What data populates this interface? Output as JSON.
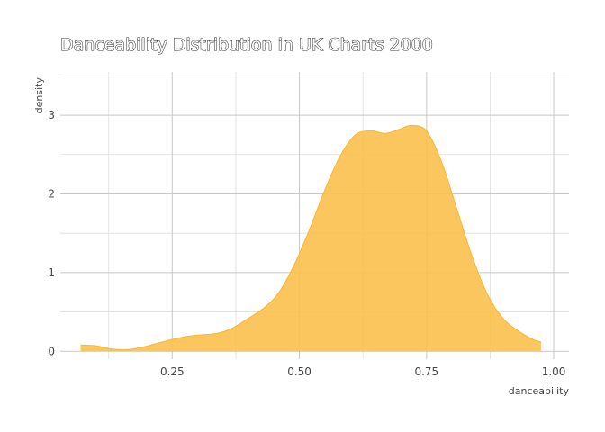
{
  "chart_data": {
    "type": "area",
    "title": "Danceability Distribution in UK Charts 2000",
    "xlabel": "danceability",
    "ylabel": "density",
    "xlim": [
      0.03,
      1.03
    ],
    "ylim": [
      -0.1,
      3.55
    ],
    "x_ticks": [
      0.25,
      0.5,
      0.75,
      1.0
    ],
    "x_tick_labels": [
      "0.25",
      "0.50",
      "0.75",
      "1.00"
    ],
    "y_ticks": [
      0,
      1,
      2,
      3
    ],
    "y_tick_labels": [
      "0",
      "1",
      "2",
      "3"
    ],
    "grid": true,
    "fill_color": "#F9C04B",
    "line_color": "#F5B733",
    "series": [
      {
        "x": [
          0.07,
          0.1,
          0.13,
          0.16,
          0.19,
          0.22,
          0.25,
          0.28,
          0.31,
          0.34,
          0.37,
          0.4,
          0.43,
          0.46,
          0.49,
          0.52,
          0.55,
          0.58,
          0.61,
          0.64,
          0.67,
          0.7,
          0.72,
          0.75,
          0.78,
          0.81,
          0.84,
          0.87,
          0.9,
          0.93,
          0.96,
          0.975
        ],
        "y": [
          0.08,
          0.07,
          0.03,
          0.02,
          0.05,
          0.1,
          0.15,
          0.19,
          0.21,
          0.23,
          0.3,
          0.42,
          0.55,
          0.75,
          1.1,
          1.55,
          2.05,
          2.48,
          2.75,
          2.8,
          2.77,
          2.83,
          2.87,
          2.8,
          2.4,
          1.8,
          1.2,
          0.72,
          0.42,
          0.26,
          0.15,
          0.12
        ]
      }
    ]
  }
}
